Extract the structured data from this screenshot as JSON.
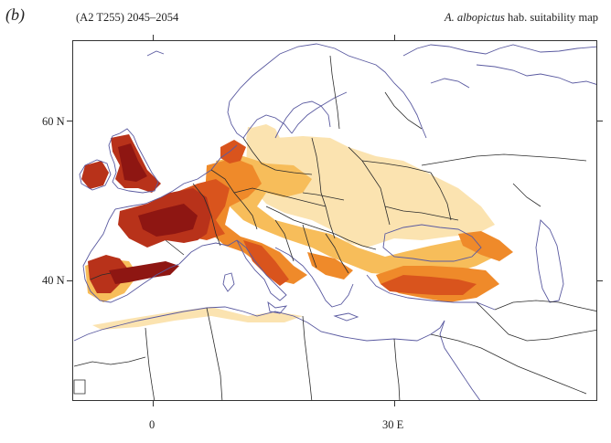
{
  "panel_label": "(b)",
  "scenario": "(A2 T255) 2045–2054",
  "title": {
    "species": "A. albopictus",
    "rest": "hab. suitability map"
  },
  "axes": {
    "lat_labels": [
      "60 N",
      "40 N"
    ],
    "lon_labels": [
      "0",
      "30 E"
    ]
  },
  "colors": {
    "very_high": "#8e1612",
    "high": "#b8321a",
    "medium_high": "#d9541d",
    "medium": "#ef8a2a",
    "low": "#f7bd5a",
    "very_low": "#fbe3b0",
    "borders": "#2b2b2b",
    "coast": "#5a5aa0"
  },
  "icons": {
    "map": "europe-suitability-map"
  }
}
